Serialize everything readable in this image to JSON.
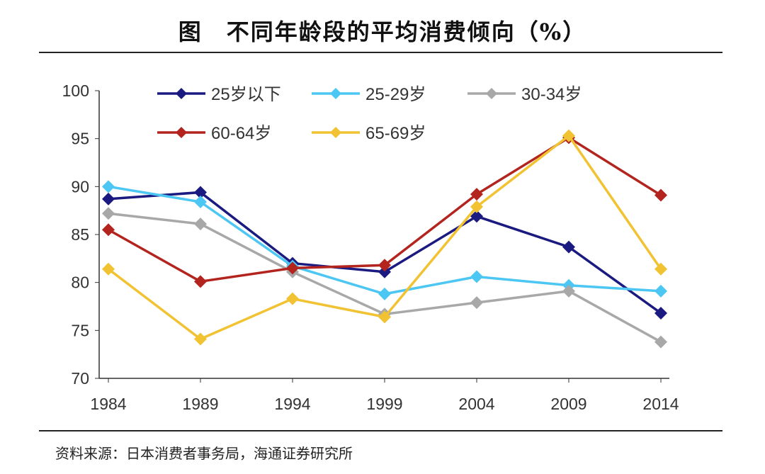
{
  "title": "图　不同年龄段的平均消费倾向（%）",
  "source": "资料来源：日本消费者事务局，海通证券研究所",
  "chart_data": {
    "type": "line",
    "title": "图　不同年龄段的平均消费倾向（%）",
    "xlabel": "",
    "ylabel": "",
    "categories": [
      "1984",
      "1989",
      "1994",
      "1999",
      "2004",
      "2009",
      "2014"
    ],
    "ylim": [
      70,
      100
    ],
    "yticks": [
      70,
      75,
      80,
      85,
      90,
      95,
      100
    ],
    "ytick_labels": [
      "70",
      "75",
      "80",
      "85",
      "90",
      "95",
      "100"
    ],
    "legend_position": "top",
    "grid": false,
    "series": [
      {
        "name": "25岁以下",
        "color": "#1a1a80",
        "values": [
          88.7,
          89.4,
          82.0,
          81.1,
          86.9,
          83.7,
          76.8
        ]
      },
      {
        "name": "25-29岁",
        "color": "#4cc6f2",
        "values": [
          90.0,
          88.4,
          81.7,
          78.8,
          80.6,
          79.7,
          79.1
        ]
      },
      {
        "name": "30-34岁",
        "color": "#a8a8a8",
        "values": [
          87.2,
          86.1,
          81.1,
          76.7,
          77.9,
          79.1,
          73.8
        ]
      },
      {
        "name": "60-64岁",
        "color": "#b3241e",
        "values": [
          85.5,
          80.1,
          81.5,
          81.8,
          89.2,
          95.1,
          89.1
        ]
      },
      {
        "name": "65-69岁",
        "color": "#f1c232",
        "values": [
          81.4,
          74.1,
          78.3,
          76.4,
          87.9,
          95.3,
          81.4
        ]
      }
    ]
  }
}
